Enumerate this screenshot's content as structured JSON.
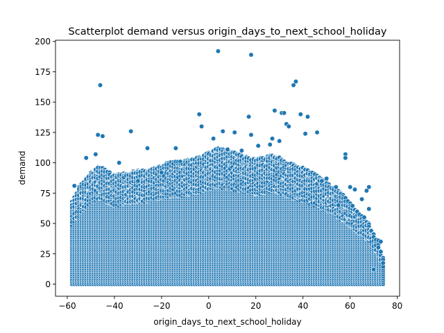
{
  "chart_data": {
    "type": "scatter",
    "title": "Scatterplot demand versus origin_days_to_next_school_holiday",
    "xlabel": "origin_days_to_next_school_holiday",
    "ylabel": "demand",
    "xlim": [
      -65,
      81
    ],
    "ylim": [
      -10,
      201
    ],
    "xticks": [
      -60,
      -40,
      -20,
      0,
      20,
      40,
      60,
      80
    ],
    "yticks": [
      0,
      25,
      50,
      75,
      100,
      125,
      150,
      175,
      200
    ],
    "grid": false,
    "legend": "none",
    "point_color": "#1f77b4",
    "point_edge_color": "#ffffff",
    "x_range_dense": [
      -58,
      74
    ],
    "envelope": [
      {
        "x": -58,
        "y": 68
      },
      {
        "x": -55,
        "y": 80
      },
      {
        "x": -50,
        "y": 92
      },
      {
        "x": -46,
        "y": 98
      },
      {
        "x": -40,
        "y": 90
      },
      {
        "x": -34,
        "y": 93
      },
      {
        "x": -25,
        "y": 95
      },
      {
        "x": -18,
        "y": 100
      },
      {
        "x": -10,
        "y": 102
      },
      {
        "x": -4,
        "y": 105
      },
      {
        "x": 4,
        "y": 112
      },
      {
        "x": 12,
        "y": 108
      },
      {
        "x": 20,
        "y": 103
      },
      {
        "x": 28,
        "y": 107
      },
      {
        "x": 34,
        "y": 100
      },
      {
        "x": 40,
        "y": 96
      },
      {
        "x": 46,
        "y": 90
      },
      {
        "x": 52,
        "y": 82
      },
      {
        "x": 58,
        "y": 72
      },
      {
        "x": 64,
        "y": 58
      },
      {
        "x": 68,
        "y": 50
      },
      {
        "x": 71,
        "y": 38
      },
      {
        "x": 74,
        "y": 22
      }
    ],
    "outliers": [
      {
        "x": 4,
        "y": 192
      },
      {
        "x": 18,
        "y": 189
      },
      {
        "x": -46,
        "y": 164
      },
      {
        "x": 36,
        "y": 164
      },
      {
        "x": 37,
        "y": 167
      },
      {
        "x": -4,
        "y": 140
      },
      {
        "x": -3,
        "y": 130
      },
      {
        "x": 28,
        "y": 143
      },
      {
        "x": 31,
        "y": 141
      },
      {
        "x": 32,
        "y": 141
      },
      {
        "x": 39,
        "y": 140
      },
      {
        "x": 42,
        "y": 138
      },
      {
        "x": 17,
        "y": 138
      },
      {
        "x": 33,
        "y": 132
      },
      {
        "x": 34,
        "y": 130
      },
      {
        "x": -47,
        "y": 123
      },
      {
        "x": -45,
        "y": 122
      },
      {
        "x": -33,
        "y": 126
      },
      {
        "x": 6,
        "y": 126
      },
      {
        "x": 11,
        "y": 125
      },
      {
        "x": 18,
        "y": 123
      },
      {
        "x": 41,
        "y": 124
      },
      {
        "x": 46,
        "y": 125
      },
      {
        "x": 2,
        "y": 120
      },
      {
        "x": 27,
        "y": 120
      },
      {
        "x": 30,
        "y": 118
      },
      {
        "x": 26,
        "y": 115
      },
      {
        "x": 21,
        "y": 114
      },
      {
        "x": -26,
        "y": 112
      },
      {
        "x": -14,
        "y": 112
      },
      {
        "x": -52,
        "y": 104
      },
      {
        "x": -48,
        "y": 107
      },
      {
        "x": -30,
        "y": 85
      },
      {
        "x": 58,
        "y": 107
      },
      {
        "x": 58,
        "y": 104
      },
      {
        "x": 60,
        "y": 80
      },
      {
        "x": 62,
        "y": 78
      },
      {
        "x": 68,
        "y": 80
      },
      {
        "x": 67,
        "y": 77
      },
      {
        "x": 65,
        "y": 70
      },
      {
        "x": 68,
        "y": 62
      },
      {
        "x": 66,
        "y": 55
      },
      {
        "x": 72,
        "y": 36
      },
      {
        "x": 73,
        "y": 35
      },
      {
        "x": 70,
        "y": 12
      },
      {
        "x": 48,
        "y": 85
      },
      {
        "x": 50,
        "y": 87
      },
      {
        "x": 54,
        "y": 80
      },
      {
        "x": 55,
        "y": 65
      },
      {
        "x": -57,
        "y": 81
      },
      {
        "x": -38,
        "y": 100
      },
      {
        "x": -20,
        "y": 92
      },
      {
        "x": 8,
        "y": 111
      },
      {
        "x": 14,
        "y": 110
      }
    ]
  }
}
